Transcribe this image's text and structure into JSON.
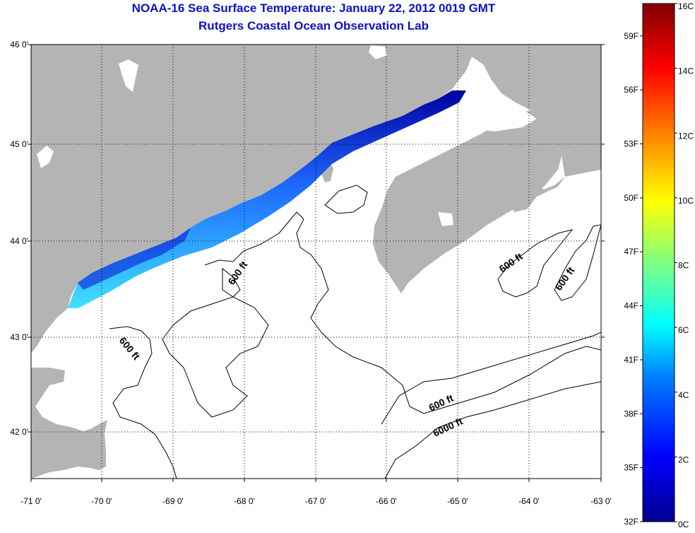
{
  "titles": {
    "line1": "NOAA-16 Sea Surface Temperature:  January 22, 2012 0019 GMT",
    "line2": "Rutgers Coastal Ocean Observation Lab"
  },
  "map": {
    "lon_labels": [
      "-71 0'",
      "-70 0'",
      "-69 0'",
      "-68 0'",
      "-67 0'",
      "-66 0'",
      "-65 0'",
      "-64 0'",
      "-63 0'"
    ],
    "lat_labels": [
      "46 0'",
      "45 0'",
      "44 0'",
      "43 0'",
      "42 0'"
    ],
    "contour_labels": [
      "600 ft",
      "600 ft",
      "600 ft",
      "600 ft",
      "600 ft",
      "6000 ft"
    ],
    "colors": {
      "land": "#b4b4b4",
      "ocean": "#ffffff",
      "contour": "#000000",
      "grid": "#000000"
    }
  },
  "colorbar": {
    "celsius_labels": [
      "16C",
      "14C",
      "12C",
      "10C",
      "8C",
      "6C",
      "4C",
      "2C",
      "0C"
    ],
    "fahrenheit_labels": [
      "59F",
      "56F",
      "53F",
      "50F",
      "47F",
      "44F",
      "41F",
      "38F",
      "35F",
      "32F"
    ],
    "stops": [
      "#00008f",
      "#0000ff",
      "#0080ff",
      "#00ffff",
      "#80ff80",
      "#ffff00",
      "#ff8000",
      "#ff0000",
      "#800000"
    ]
  }
}
